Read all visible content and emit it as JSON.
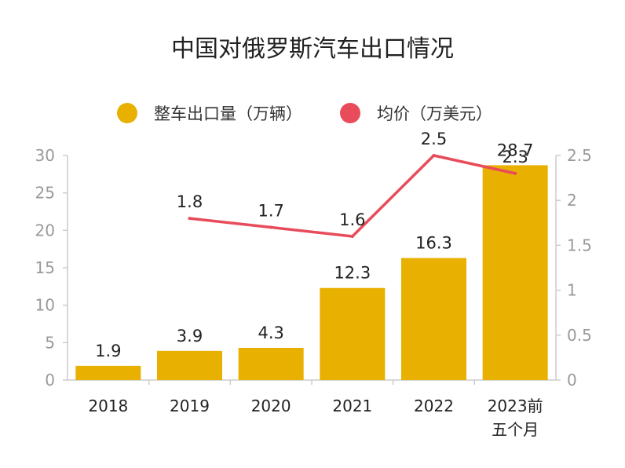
{
  "chart_data": {
    "type": "bar",
    "title": "中国对俄罗斯汽车出口情况",
    "categories": [
      "2018",
      "2019",
      "2020",
      "2021",
      "2022",
      "2023前\n五个月"
    ],
    "series": [
      {
        "name": "整车出口量（万辆）",
        "type": "bar",
        "axis": "left",
        "color": "#e8b000",
        "values": [
          1.9,
          3.9,
          4.3,
          12.3,
          16.3,
          28.7
        ],
        "labels": [
          "1.9",
          "3.9",
          "4.3",
          "12.3",
          "16.3",
          "28.7"
        ]
      },
      {
        "name": "均价（万美元）",
        "type": "line",
        "axis": "right",
        "color": "#e84b5a",
        "values": [
          null,
          1.8,
          1.7,
          1.6,
          2.5,
          2.3
        ],
        "labels": [
          "",
          "1.8",
          "1.7",
          "1.6",
          "2.5",
          "2.3"
        ]
      }
    ],
    "y_left": {
      "min": 0,
      "max": 30,
      "ticks": [
        "0",
        "5",
        "10",
        "15",
        "20",
        "25",
        "30"
      ]
    },
    "y_right": {
      "min": 0,
      "max": 2.5,
      "ticks": [
        "0",
        "0.5",
        "1",
        "1.5",
        "2",
        "2.5"
      ]
    },
    "grid": false,
    "legend_position": "top"
  }
}
